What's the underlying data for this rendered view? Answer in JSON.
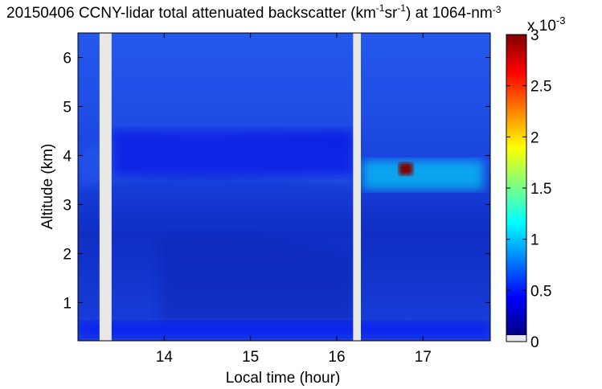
{
  "chart_data": {
    "type": "heatmap",
    "title": {
      "date": "20150406",
      "prefix": "CCNY-lidar total attenuated backscatter (km",
      "exp1": "-1",
      "mid": "sr",
      "exp2": "-1",
      "suffix": ") at 1064-nm",
      "exp3": "-3"
    },
    "xlabel": "Local time (hour)",
    "ylabel": "Altitude (km)",
    "xlim": [
      13.0,
      17.78
    ],
    "ylim": [
      0.22,
      6.5
    ],
    "xticks": [
      14,
      15,
      16,
      17
    ],
    "xtick_labels": [
      "14",
      "15",
      "16",
      "17"
    ],
    "yticks": [
      1,
      2,
      3,
      4,
      5,
      6
    ],
    "ytick_labels": [
      "1",
      "2",
      "3",
      "4",
      "5",
      "6"
    ],
    "data_gaps_hours": [
      [
        13.25,
        13.39
      ],
      [
        16.19,
        16.28
      ]
    ],
    "colorbar": {
      "colormap": "jet",
      "range": [
        0,
        3
      ],
      "ticks": [
        0,
        0.5,
        1,
        1.5,
        2,
        2.5,
        3
      ],
      "tick_labels": [
        "0",
        "0.5",
        "1",
        "1.5",
        "2",
        "2.5",
        "3"
      ],
      "exponent_label": "x 10",
      "exponent_power": "-3",
      "missing_color": "#e8e8e8"
    },
    "features": [
      {
        "name": "boundary layer",
        "x": [
          13.0,
          17.78
        ],
        "altitude_km": [
          0.3,
          0.6
        ],
        "value": 0.4
      },
      {
        "name": "aerosol layer top",
        "x": [
          13.4,
          16.19
        ],
        "altitude_km": [
          3.6,
          4.5
        ],
        "value": 0.3
      },
      {
        "name": "cloud layer",
        "x": [
          16.3,
          17.7
        ],
        "altitude_km": [
          3.3,
          3.9
        ],
        "value": 1.1
      },
      {
        "name": "dense cloud",
        "x": [
          16.72,
          16.88
        ],
        "altitude_km": [
          3.6,
          3.85
        ],
        "value": 3.0
      }
    ]
  }
}
